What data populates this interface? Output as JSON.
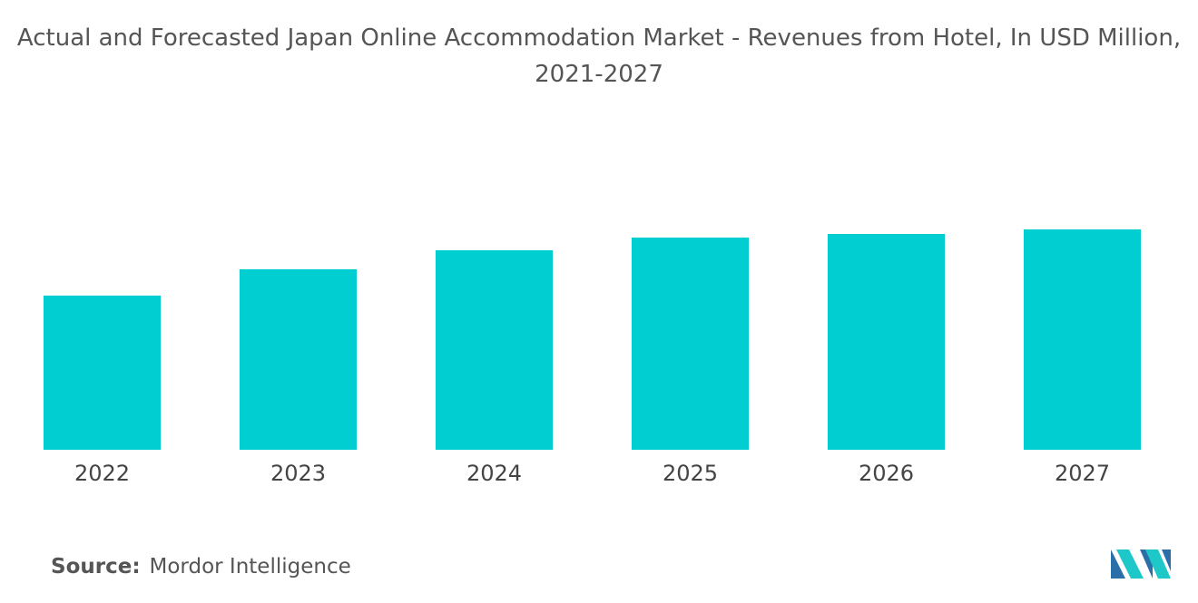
{
  "chart_data": {
    "type": "bar",
    "title": "Actual and Forecasted Japan Online Accommodation Market - Revenues from Hotel, In USD Million, 2021-2027",
    "categories": [
      "2022",
      "2023",
      "2024",
      "2025",
      "2026",
      "2027"
    ],
    "values": [
      170,
      199,
      220,
      234,
      238,
      243
    ],
    "color": "#00ced1",
    "ylim": [
      0,
      250
    ],
    "source_label": "Source:",
    "source": "Mordor Intelligence"
  }
}
